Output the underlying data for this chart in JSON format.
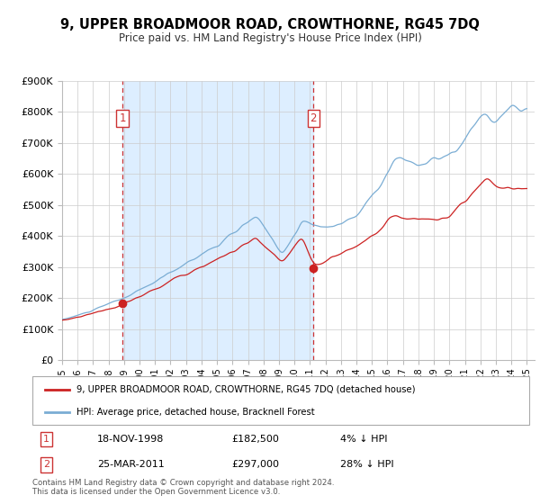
{
  "title": "9, UPPER BROADMOOR ROAD, CROWTHORNE, RG45 7DQ",
  "subtitle": "Price paid vs. HM Land Registry's House Price Index (HPI)",
  "ylim": [
    0,
    900000
  ],
  "yticks": [
    0,
    100000,
    200000,
    300000,
    400000,
    500000,
    600000,
    700000,
    800000,
    900000
  ],
  "ytick_labels": [
    "£0",
    "£100K",
    "£200K",
    "£300K",
    "£400K",
    "£500K",
    "£600K",
    "£700K",
    "£800K",
    "£900K"
  ],
  "hpi_color": "#7aadd4",
  "price_color": "#cc2222",
  "marker_color": "#cc2222",
  "shaded_region_color": "#ddeeff",
  "vline_color": "#cc3333",
  "grid_color": "#cccccc",
  "background_color": "#ffffff",
  "sale1_date_num": 1998.89,
  "sale1_price": 182500,
  "sale1_date_str": "18-NOV-1998",
  "sale1_price_str": "£182,500",
  "sale1_hpi_str": "4% ↓ HPI",
  "sale2_date_num": 2011.23,
  "sale2_price": 297000,
  "sale2_date_str": "25-MAR-2011",
  "sale2_price_str": "£297,000",
  "sale2_hpi_str": "28% ↓ HPI",
  "legend_line1": "9, UPPER BROADMOOR ROAD, CROWTHORNE, RG45 7DQ (detached house)",
  "legend_line2": "HPI: Average price, detached house, Bracknell Forest",
  "footnote": "Contains HM Land Registry data © Crown copyright and database right 2024.\nThis data is licensed under the Open Government Licence v3.0.",
  "xmin": 1995.0,
  "xmax": 2025.5
}
